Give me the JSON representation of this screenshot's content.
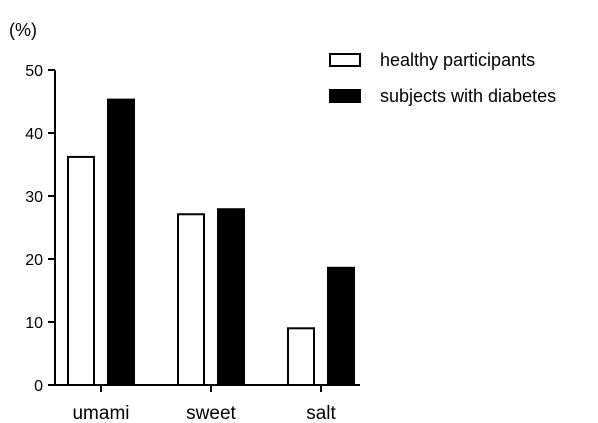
{
  "chart_data": {
    "type": "bar",
    "ylabel": "(%)",
    "xlabel": "",
    "ylim": [
      0,
      50
    ],
    "yticks": [
      0,
      10,
      20,
      30,
      40,
      50
    ],
    "categories": [
      "umami",
      "sweet",
      "salt"
    ],
    "series": [
      {
        "name": "healthy participants",
        "values": [
          36.2,
          27.1,
          9.0
        ],
        "fill": "#ffffff",
        "stroke": "#000000"
      },
      {
        "name": "subjects with diabetes",
        "values": [
          45.3,
          27.9,
          18.6
        ],
        "fill": "#000000",
        "stroke": "#000000"
      }
    ],
    "legend_position": "top-right",
    "grid": false
  }
}
